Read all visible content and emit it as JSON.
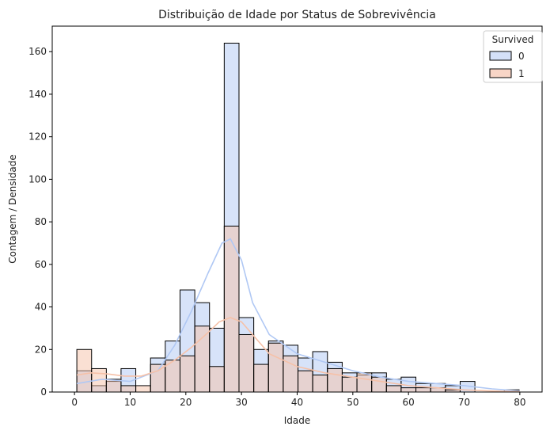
{
  "chart_data": {
    "type": "bar",
    "title": "Distribuição de Idade por Status de Sobrevivência",
    "xlabel": "Idade",
    "ylabel": "Contagem / Densidade",
    "xlim": [
      -4,
      84
    ],
    "ylim": [
      0,
      172
    ],
    "xticks": [
      0,
      10,
      20,
      30,
      40,
      50,
      60,
      70,
      80
    ],
    "yticks": [
      0,
      20,
      40,
      60,
      80,
      100,
      120,
      140,
      160
    ],
    "bin_edges": [
      0.42,
      3.07,
      5.72,
      8.36,
      11.01,
      13.66,
      16.31,
      18.96,
      21.61,
      24.25,
      26.9,
      29.55,
      32.2,
      34.85,
      37.5,
      40.15,
      42.79,
      45.44,
      48.09,
      50.74,
      53.39,
      56.04,
      58.68,
      61.33,
      63.98,
      66.63,
      69.28,
      71.93,
      74.57,
      77.22,
      79.87
    ],
    "legend": {
      "title": "Survived",
      "position": "top-right"
    },
    "series": [
      {
        "name": "0",
        "color": "#b0c8f4",
        "counts": [
          10,
          3,
          5,
          11,
          0,
          16,
          24,
          48,
          42,
          30,
          164,
          35,
          20,
          24,
          22,
          16,
          19,
          14,
          9,
          8,
          9,
          6,
          7,
          4,
          4,
          3,
          5,
          0,
          0,
          1
        ],
        "kde_x": [
          0.42,
          5,
          10,
          15,
          18,
          21,
          24,
          26.5,
          28,
          30,
          32,
          35,
          40,
          45,
          50,
          55,
          60,
          65,
          70,
          75,
          80
        ],
        "kde_y": [
          4,
          6,
          5,
          10,
          22,
          38,
          56,
          70,
          72,
          62,
          42,
          27,
          18,
          14,
          10,
          7,
          5,
          4,
          3,
          1.5,
          0.5
        ]
      },
      {
        "name": "1",
        "color": "#f6c1a8",
        "counts": [
          20,
          11,
          6,
          3,
          3,
          13,
          15,
          17,
          31,
          12,
          78,
          27,
          13,
          23,
          17,
          10,
          8,
          11,
          7,
          9,
          7,
          3,
          2,
          2,
          2,
          1,
          0,
          0,
          0,
          1
        ],
        "kde_x": [
          0.42,
          3,
          6,
          9,
          12,
          15,
          18,
          21,
          24,
          26,
          28,
          30,
          32,
          35,
          40,
          45,
          50,
          55,
          60,
          65,
          70,
          75,
          80
        ],
        "kde_y": [
          8,
          9,
          8.5,
          7.5,
          7.5,
          10,
          15,
          21,
          28,
          33,
          35,
          33,
          27,
          18,
          12,
          9,
          7,
          5,
          3,
          2,
          1,
          0.5,
          0.2
        ]
      }
    ]
  }
}
